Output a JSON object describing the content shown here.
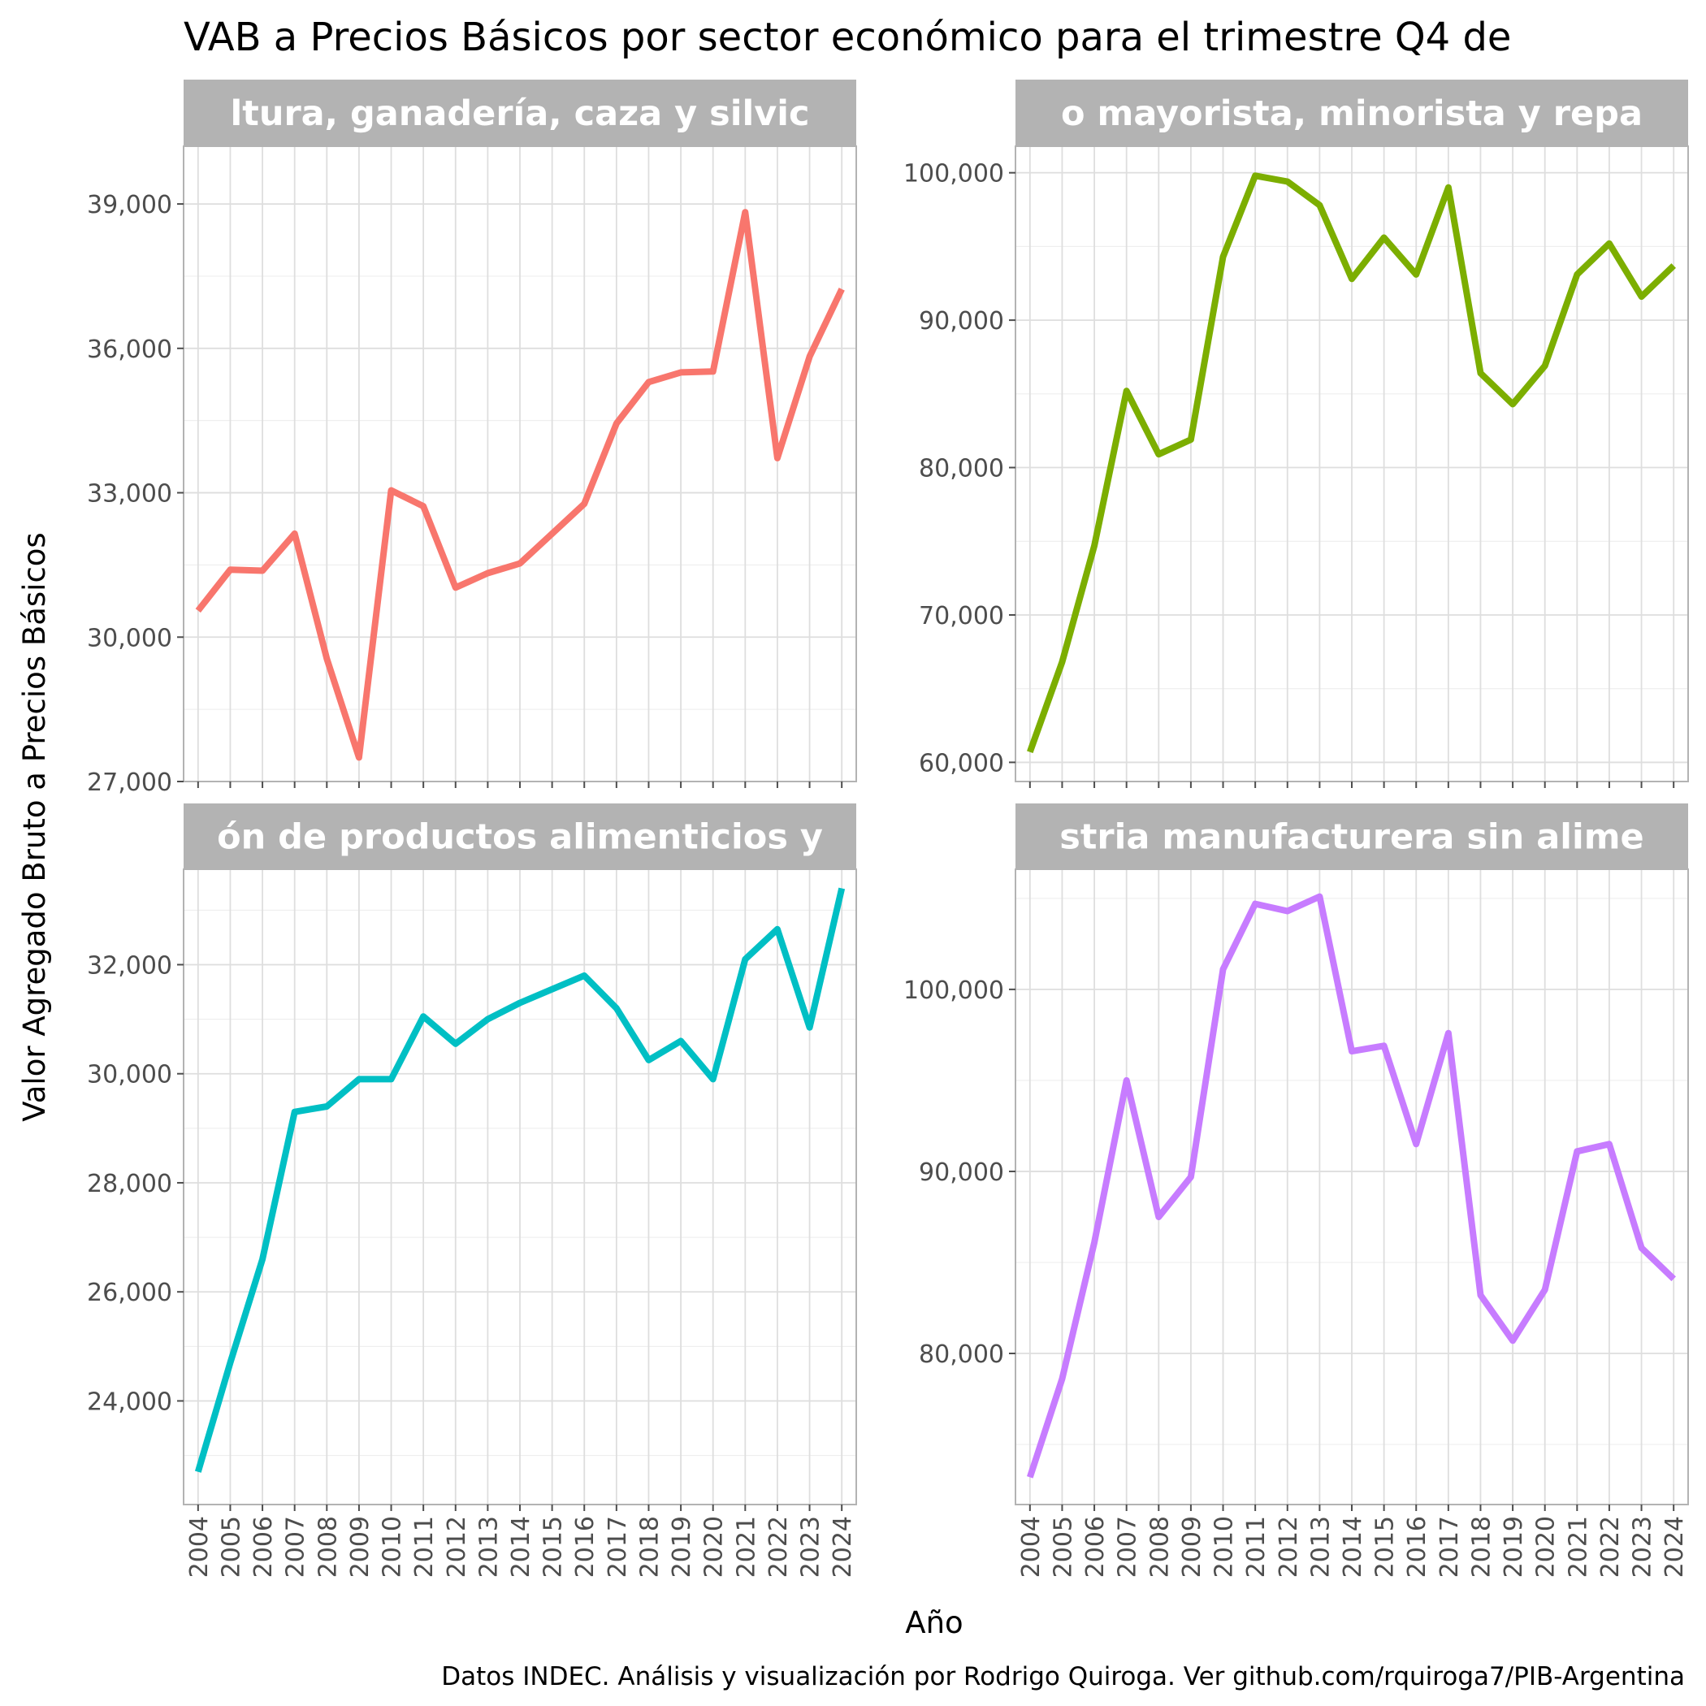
{
  "title": "VAB a Precios Básicos por sector económico para el trimestre Q4 de",
  "xlabel": "Año",
  "ylabel": "Valor Agregado Bruto a Precios Básicos",
  "caption": "Datos INDEC. Análisis y visualización por Rodrigo Quiroga. Ver github.com/rquiroga7/PIB-Argentina",
  "chart_data": [
    {
      "type": "line",
      "panel": "top-left",
      "strip_label": "ltura, ganadería, caza y silvic",
      "color": "#F8766D",
      "x": [
        2004,
        2005,
        2006,
        2007,
        2008,
        2009,
        2010,
        2011,
        2012,
        2013,
        2014,
        2015,
        2016,
        2017,
        2018,
        2019,
        2020,
        2021,
        2022,
        2023,
        2024
      ],
      "values": [
        30550,
        31400,
        31380,
        32150,
        29550,
        27500,
        33050,
        32720,
        31030,
        31330,
        31530,
        32150,
        32770,
        34440,
        35300,
        35500,
        35520,
        38830,
        33720,
        35830,
        37230
      ],
      "ylim": [
        27000,
        40200
      ],
      "yticks": [
        27000,
        30000,
        33000,
        36000,
        39000
      ],
      "ytick_labels": [
        "27,000",
        "30,000",
        "33,000",
        "36,000",
        "39,000"
      ],
      "show_x_ticks": false
    },
    {
      "type": "line",
      "panel": "top-right",
      "strip_label": "o mayorista, minorista y repa",
      "color": "#7CAE00",
      "x": [
        2004,
        2005,
        2006,
        2007,
        2008,
        2009,
        2010,
        2011,
        2012,
        2013,
        2014,
        2015,
        2016,
        2017,
        2018,
        2019,
        2020,
        2021,
        2022,
        2023,
        2024
      ],
      "values": [
        60700,
        66800,
        74700,
        85200,
        80900,
        81900,
        94300,
        99800,
        99400,
        97800,
        92800,
        95600,
        93100,
        99000,
        86400,
        84300,
        86900,
        93100,
        95200,
        91600,
        93700
      ],
      "ylim": [
        58700,
        101800
      ],
      "yticks": [
        60000,
        70000,
        80000,
        90000,
        100000
      ],
      "ytick_labels": [
        "60,000",
        "70,000",
        "80,000",
        "90,000",
        "100,000"
      ],
      "show_x_ticks": false
    },
    {
      "type": "line",
      "panel": "bottom-left",
      "strip_label": "ón de productos alimenticios y",
      "color": "#00BFC4",
      "x": [
        2004,
        2005,
        2006,
        2007,
        2008,
        2009,
        2010,
        2011,
        2012,
        2013,
        2014,
        2015,
        2016,
        2017,
        2018,
        2019,
        2020,
        2021,
        2022,
        2023,
        2024
      ],
      "values": [
        22700,
        24700,
        26600,
        29300,
        29400,
        29900,
        29900,
        31050,
        30550,
        31000,
        31300,
        31550,
        31800,
        31200,
        30250,
        30600,
        29900,
        32100,
        32650,
        30850,
        33400
      ],
      "ylim": [
        22100,
        33750
      ],
      "yticks": [
        24000,
        26000,
        28000,
        30000,
        32000
      ],
      "ytick_labels": [
        "24,000",
        "26,000",
        "28,000",
        "30,000",
        "32,000"
      ],
      "show_x_ticks": true,
      "x_tick_labels": [
        "2004",
        "2005",
        "2006",
        "2007",
        "2008",
        "2009",
        "2010",
        "2011",
        "2012",
        "2013",
        "2014",
        "2015",
        "2016",
        "2017",
        "2018",
        "2019",
        "2020",
        "2021",
        "2022",
        "2023",
        "2024"
      ]
    },
    {
      "type": "line",
      "panel": "bottom-right",
      "strip_label": "stria manufacturera sin alime",
      "color": "#C77CFF",
      "x": [
        2004,
        2005,
        2006,
        2007,
        2008,
        2009,
        2010,
        2011,
        2012,
        2013,
        2014,
        2015,
        2016,
        2017,
        2018,
        2019,
        2020,
        2021,
        2022,
        2023,
        2024
      ],
      "values": [
        73200,
        78600,
        86100,
        95000,
        87500,
        89700,
        101100,
        104700,
        104300,
        105100,
        96600,
        96900,
        91500,
        97600,
        83200,
        80700,
        83500,
        91100,
        91500,
        85800,
        84100
      ],
      "ylim": [
        71700,
        106600
      ],
      "yticks": [
        80000,
        90000,
        100000
      ],
      "ytick_labels": [
        "80,000",
        "90,000",
        "100,000"
      ],
      "show_x_ticks": true,
      "x_tick_labels": [
        "2004",
        "2005",
        "2006",
        "2007",
        "2008",
        "2009",
        "2010",
        "2011",
        "2012",
        "2013",
        "2014",
        "2015",
        "2016",
        "2017",
        "2018",
        "2019",
        "2020",
        "2021",
        "2022",
        "2023",
        "2024"
      ]
    }
  ]
}
